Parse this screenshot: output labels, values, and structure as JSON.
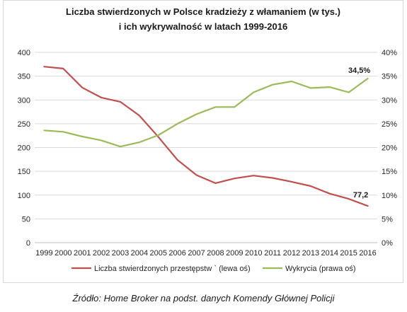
{
  "chart_data": {
    "type": "line",
    "title": "Liczba stwierdzonych w Polsce kradzieży z włamaniem (w tys.)",
    "subtitle": "i ich wykrywalność w latach 1999-2016",
    "x": [
      "1999",
      "2000",
      "2001",
      "2002",
      "2003",
      "2004",
      "2005",
      "2006",
      "2007",
      "2008",
      "2009",
      "2010",
      "2011",
      "2012",
      "2013",
      "2014",
      "2015",
      "2016"
    ],
    "y_left": {
      "range": [
        0,
        400
      ],
      "ticks": [
        "0",
        "50",
        "100",
        "150",
        "200",
        "250",
        "300",
        "350",
        "400"
      ]
    },
    "y_right": {
      "range": [
        0,
        40
      ],
      "ticks": [
        "0%",
        "5%",
        "10%",
        "15%",
        "20%",
        "25%",
        "30%",
        "35%",
        "40%"
      ]
    },
    "grid": true,
    "legend_position": "bottom",
    "series": [
      {
        "name": "Liczba stwierdzonych przestępstw ` (lewa oś)",
        "axis": "left",
        "color": "#c0504d",
        "values": [
          370,
          366,
          326,
          305,
          296,
          267,
          222,
          174,
          142,
          125,
          135,
          141,
          136,
          128,
          119,
          103,
          92,
          77.2
        ]
      },
      {
        "name": "Wykrycia (prawa oś)",
        "axis": "right",
        "color": "#9bbb59",
        "values": [
          23.6,
          23.3,
          22.3,
          21.5,
          20.2,
          21.1,
          22.6,
          25.0,
          27.0,
          28.5,
          28.5,
          31.6,
          33.2,
          33.9,
          32.5,
          32.7,
          31.6,
          34.5
        ]
      }
    ],
    "annotations": [
      "34,5%",
      "77,2"
    ]
  },
  "source_note": "Źródło: Home Broker na podst. danych Komendy Głównej Policji"
}
